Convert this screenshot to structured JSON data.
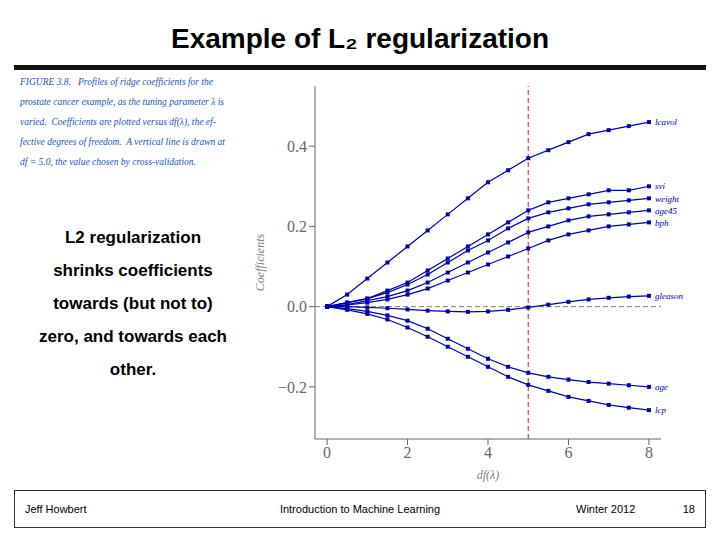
{
  "chart_data": {
    "type": "line",
    "title": "Example of L₂ regularization",
    "x_label": "df(λ)",
    "y_label": "Coefficients",
    "xlim": [
      -0.3,
      8.3
    ],
    "ylim": [
      -0.33,
      0.55
    ],
    "xticks": [
      0,
      2,
      4,
      6,
      8
    ],
    "yticks": [
      {
        "value": -0.2,
        "label": "−0.2"
      },
      {
        "value": 0.0,
        "label": "0.0"
      },
      0.2,
      0.4
    ],
    "grid": false,
    "marker": "square",
    "line_style": "solid",
    "x": [
      0,
      0.5,
      1.0,
      1.5,
      2.0,
      2.5,
      3.0,
      3.5,
      4.0,
      4.5,
      5.0,
      5.5,
      6.0,
      6.5,
      7.0,
      7.5,
      8.0
    ],
    "series": [
      {
        "name": "lcavol",
        "color": "#0000aa",
        "values": [
          0,
          0.03,
          0.07,
          0.11,
          0.15,
          0.19,
          0.23,
          0.27,
          0.31,
          0.34,
          0.37,
          0.39,
          0.41,
          0.43,
          0.44,
          0.45,
          0.46
        ]
      },
      {
        "name": "svi",
        "color": "#0000aa",
        "values": [
          0,
          0.01,
          0.02,
          0.04,
          0.06,
          0.09,
          0.12,
          0.15,
          0.18,
          0.21,
          0.24,
          0.26,
          0.27,
          0.28,
          0.29,
          0.29,
          0.3
        ]
      },
      {
        "name": "weight",
        "color": "#0000aa",
        "values": [
          0,
          0.01,
          0.02,
          0.035,
          0.055,
          0.08,
          0.11,
          0.14,
          0.165,
          0.195,
          0.22,
          0.235,
          0.245,
          0.255,
          0.26,
          0.265,
          0.27
        ]
      },
      {
        "name": "age45",
        "color": "#0000aa",
        "values": [
          0,
          0.005,
          0.015,
          0.025,
          0.04,
          0.06,
          0.085,
          0.11,
          0.135,
          0.16,
          0.185,
          0.2,
          0.215,
          0.225,
          0.23,
          0.235,
          0.24
        ]
      },
      {
        "name": "bph",
        "color": "#0000aa",
        "values": [
          0,
          0.004,
          0.01,
          0.018,
          0.03,
          0.045,
          0.065,
          0.085,
          0.105,
          0.125,
          0.145,
          0.165,
          0.18,
          0.19,
          0.2,
          0.205,
          0.21
        ]
      },
      {
        "name": "gleason",
        "color": "#0000aa",
        "values": [
          0,
          0.0,
          -0.002,
          -0.004,
          -0.007,
          -0.01,
          -0.012,
          -0.013,
          -0.012,
          -0.008,
          -0.002,
          0.005,
          0.012,
          0.018,
          0.022,
          0.025,
          0.027
        ]
      },
      {
        "name": "age",
        "color": "#0000aa",
        "values": [
          0,
          -0.005,
          -0.012,
          -0.022,
          -0.035,
          -0.055,
          -0.08,
          -0.105,
          -0.13,
          -0.15,
          -0.165,
          -0.175,
          -0.182,
          -0.188,
          -0.192,
          -0.196,
          -0.2
        ]
      },
      {
        "name": "lcp",
        "color": "#0000aa",
        "values": [
          0,
          -0.008,
          -0.018,
          -0.032,
          -0.052,
          -0.075,
          -0.1,
          -0.125,
          -0.15,
          -0.175,
          -0.195,
          -0.21,
          -0.225,
          -0.235,
          -0.245,
          -0.252,
          -0.258
        ]
      }
    ],
    "reference_lines": [
      {
        "axis": "x",
        "value": 5.0,
        "color": "#aa0000",
        "line_style": "dashed"
      },
      {
        "axis": "y",
        "value": 0,
        "color": "#444444",
        "line_style": "dashed"
      }
    ],
    "caption_lines": [
      "FIGURE 3.8.   Profiles of ridge coefficients for the",
      "prostate cancer example, as the tuning parameter λ is",
      "varied.  Coefficients are plotted versus df(λ), the ef-",
      "fective degrees of freedom.  A vertical line is drawn at",
      "df = 5.0, the value chosen by cross-validation."
    ],
    "caption_color": "#2255aa",
    "body_text_lines": [
      "L2 regularization",
      "shrinks coefficients",
      "towards (but not to)",
      "zero, and towards each",
      "other."
    ],
    "footer_left": "Jeff Howbert",
    "footer_center": "Introduction to Machine Learning",
    "footer_right": "Winter 2012",
    "footer_page": "18"
  }
}
